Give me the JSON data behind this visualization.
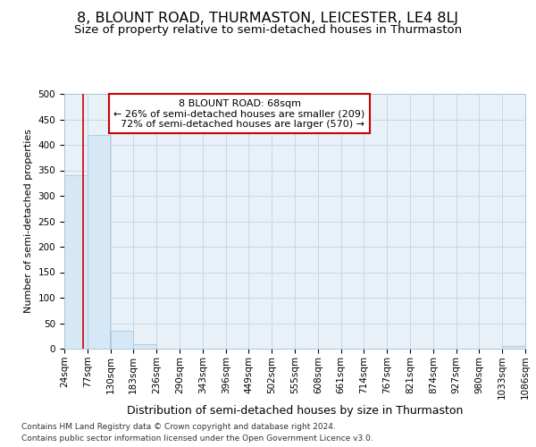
{
  "title": "8, BLOUNT ROAD, THURMASTON, LEICESTER, LE4 8LJ",
  "subtitle": "Size of property relative to semi-detached houses in Thurmaston",
  "xlabel": "Distribution of semi-detached houses by size in Thurmaston",
  "ylabel": "Number of semi-detached properties",
  "footnote1": "Contains HM Land Registry data © Crown copyright and database right 2024.",
  "footnote2": "Contains public sector information licensed under the Open Government Licence v3.0.",
  "bin_edges": [
    24,
    77,
    130,
    183,
    236,
    290,
    343,
    396,
    449,
    502,
    555,
    608,
    661,
    714,
    767,
    821,
    874,
    927,
    980,
    1033,
    1086
  ],
  "bar_heights": [
    340,
    420,
    35,
    8,
    0,
    0,
    0,
    0,
    0,
    0,
    0,
    0,
    0,
    0,
    0,
    0,
    0,
    0,
    0,
    5
  ],
  "bar_color": "#d6e8f5",
  "bar_edge_color": "#a8c8e0",
  "grid_color": "#c8d8e8",
  "property_size": 68,
  "property_name": "8 BLOUNT ROAD: 68sqm",
  "pct_smaller": 26,
  "count_smaller": 209,
  "pct_larger": 72,
  "count_larger": 570,
  "vline_color": "#cc0000",
  "annotation_box_edge": "#cc0000",
  "ylim": [
    0,
    500
  ],
  "yticks": [
    0,
    50,
    100,
    150,
    200,
    250,
    300,
    350,
    400,
    450,
    500
  ],
  "background_color": "#e8f0f8",
  "title_fontsize": 11.5,
  "subtitle_fontsize": 9.5,
  "tick_fontsize": 7.5,
  "ylabel_fontsize": 8,
  "xlabel_fontsize": 9
}
